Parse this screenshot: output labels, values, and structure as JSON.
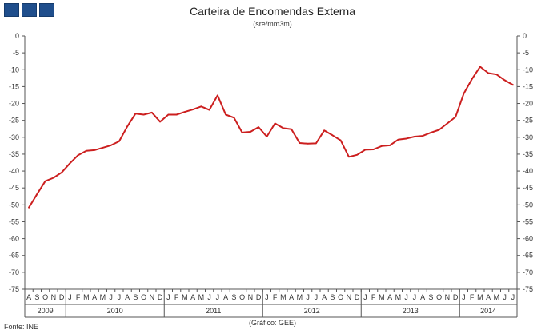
{
  "header": {
    "title": "Carteira de Encomendas  Externa",
    "subtitle": "(sre/mm3m)"
  },
  "footer": {
    "source": "Fonte:  INE",
    "credit": "(Gráfico:  GEE)"
  },
  "colors": {
    "line": "#cc1f1f",
    "logo": "#1f4e8c",
    "axis": "#555555"
  },
  "icons": {
    "logo": "gee-logo-squares"
  },
  "chart_data": {
    "type": "line",
    "title": "Carteira de Encomendas  Externa",
    "subtitle": "(sre/mm3m)",
    "ylim": [
      -75,
      0
    ],
    "y_ticks": [
      0,
      -5,
      -10,
      -15,
      -20,
      -25,
      -30,
      -35,
      -40,
      -45,
      -50,
      -55,
      -60,
      -65,
      -70,
      -75
    ],
    "y_axis_both_sides": true,
    "grid": false,
    "legend": "none",
    "x_month_labels": [
      "A",
      "S",
      "O",
      "N",
      "D",
      "J",
      "F",
      "M",
      "A",
      "M",
      "J",
      "J",
      "A",
      "S",
      "O",
      "N",
      "D",
      "J",
      "F",
      "M",
      "A",
      "M",
      "J",
      "J",
      "A",
      "S",
      "O",
      "N",
      "D",
      "J",
      "F",
      "M",
      "A",
      "M",
      "J",
      "J",
      "A",
      "S",
      "O",
      "N",
      "D",
      "J",
      "F",
      "M",
      "A",
      "M",
      "J",
      "J",
      "A",
      "S",
      "O",
      "N",
      "D",
      "J",
      "F",
      "M",
      "A",
      "M",
      "J",
      "J"
    ],
    "x_year_labels": [
      "2009",
      "2010",
      "2011",
      "2012",
      "2013",
      "2014"
    ],
    "series": [
      {
        "values": [
          -50.8,
          -46.8,
          -43.0,
          -42.0,
          -40.4,
          -37.7,
          -35.3,
          -34.0,
          -33.8,
          -33.1,
          -32.4,
          -31.2,
          -26.8,
          -23.0,
          -23.3,
          -22.7,
          -25.4,
          -23.3,
          -23.3,
          -22.5,
          -21.8,
          -20.9,
          -21.9,
          -17.6,
          -23.3,
          -24.2,
          -28.6,
          -28.4,
          -27.0,
          -29.8,
          -25.9,
          -27.3,
          -27.6,
          -31.7,
          -31.9,
          -31.8,
          -28.0,
          -29.4,
          -30.9,
          -35.8,
          -35.2,
          -33.7,
          -33.6,
          -32.6,
          -32.4,
          -30.7,
          -30.4,
          -29.8,
          -29.6,
          -28.6,
          -27.8,
          -25.9,
          -24.0,
          -17.1,
          -12.8,
          -9.1,
          -11.0,
          -11.4,
          -13.1,
          -14.5
        ]
      }
    ]
  }
}
